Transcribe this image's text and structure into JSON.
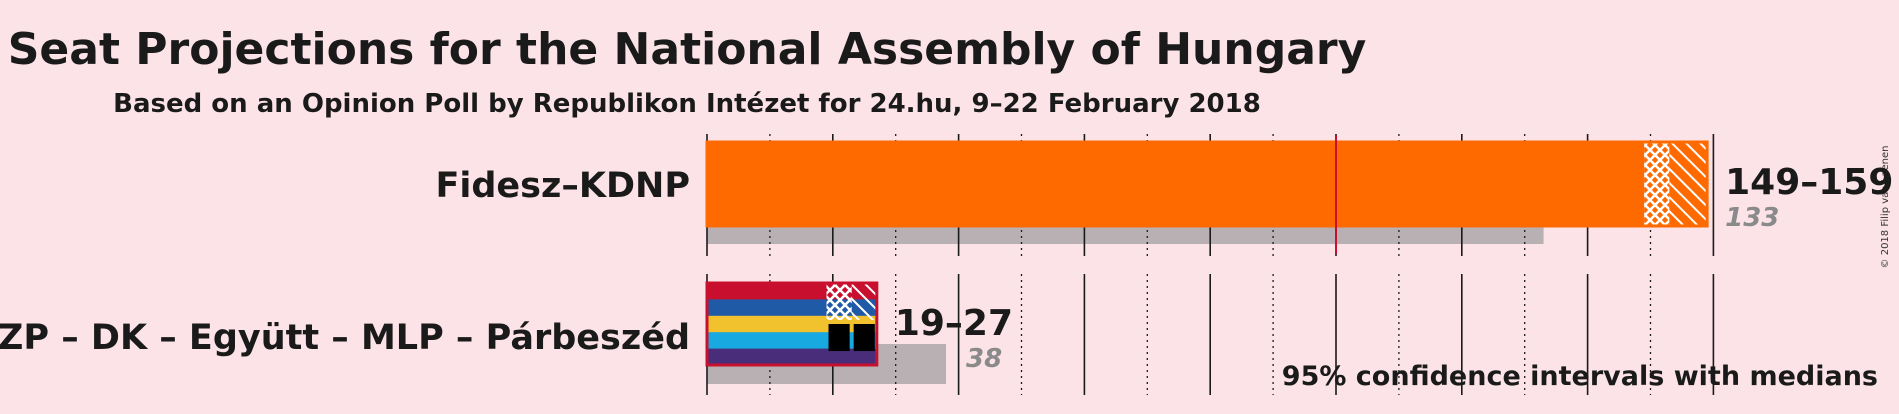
{
  "title": "Seat Projections for the National Assembly of Hungary",
  "subtitle": "Based on an Opinion Poll by Republikon Intézet for 24.hu, 9–22 February 2018",
  "copyright": "© 2018 Filip van Laenen",
  "footnote": "95% confidence intervals with medians",
  "chart_data": {
    "type": "bar",
    "orientation": "horizontal",
    "title": "Seat Projections for the National Assembly of Hungary",
    "subtitle": "Based on an Opinion Poll by Republikon Intézet for 24.hu, 9–22 February 2018",
    "majority_line": 100,
    "xlim": [
      0,
      160
    ],
    "tick_step": 10,
    "categories": [
      "Fidesz–KDNP",
      "MSZP – DK – Együtt – MLP – Párbeszéd"
    ],
    "series": [
      {
        "party": "Fidesz–KDNP",
        "ci_low": 149,
        "ci_high": 159,
        "median": 153,
        "last_result": 133,
        "range_label": "149–159",
        "last_result_label": "133",
        "colors": [
          "#ff6a00"
        ]
      },
      {
        "party": "MSZP – DK – Együtt – MLP – Párbeszéd",
        "ci_low": 19,
        "ci_high": 27,
        "median": 23,
        "last_result": 38,
        "range_label": "19–27",
        "last_result_label": "38",
        "colors": [
          "#c8102e",
          "#1f5aa6",
          "#f2c12e",
          "#17a9e0",
          "#4a2d7a"
        ]
      }
    ],
    "colors": {
      "background": "#fbe3e8",
      "last_result": "#b9b0b3",
      "majority_line": "#c8102e",
      "tick": "#1a1a1a"
    }
  }
}
